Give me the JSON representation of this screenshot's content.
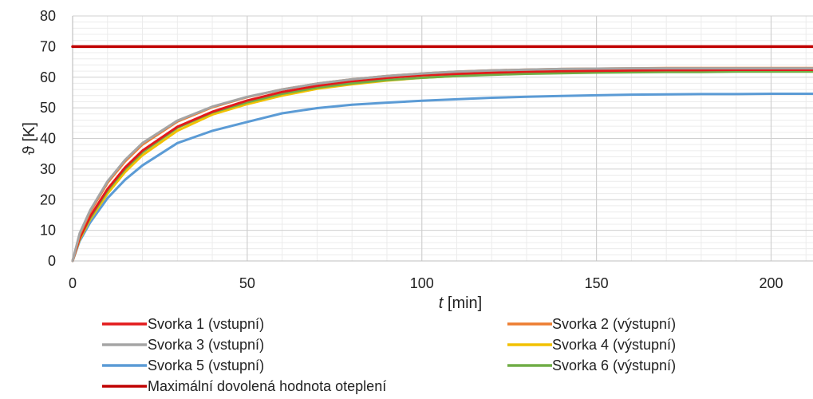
{
  "chart_data": {
    "type": "line",
    "title": "",
    "xlabel_var": "t",
    "xlabel_unit": " [min]",
    "ylabel": "ϑ [K]",
    "xlim": [
      0,
      212
    ],
    "ylim": [
      0,
      80
    ],
    "xticks": [
      0,
      50,
      100,
      150,
      200
    ],
    "yticks": [
      0,
      10,
      20,
      30,
      40,
      50,
      60,
      70,
      80
    ],
    "grid": true,
    "legend_position": "bottom",
    "x": [
      0,
      2,
      5,
      10,
      15,
      20,
      30,
      40,
      50,
      60,
      70,
      80,
      90,
      100,
      110,
      120,
      130,
      140,
      150,
      160,
      170,
      180,
      190,
      200,
      212
    ],
    "series": [
      {
        "name": "Svorka 1 (vstupní)",
        "color": "#e31a1c",
        "values": [
          0,
          7.5,
          14.5,
          23.5,
          30.5,
          36,
          43.8,
          48.7,
          52.4,
          55.2,
          57.2,
          58.7,
          59.8,
          60.6,
          61.1,
          61.5,
          61.8,
          62.0,
          62.1,
          62.2,
          62.3,
          62.3,
          62.4,
          62.4,
          62.4
        ]
      },
      {
        "name": "Svorka 2 (výstupní)",
        "color": "#ed7d31",
        "values": [
          0,
          8.5,
          16,
          25.5,
          32.5,
          38,
          45.5,
          50.2,
          53.5,
          56,
          57.9,
          59.3,
          60.4,
          61.2,
          61.8,
          62.2,
          62.5,
          62.7,
          62.8,
          62.9,
          63.0,
          63.0,
          63.0,
          63.0,
          63.0
        ]
      },
      {
        "name": "Svorka 3 (vstupní)",
        "color": "#a5a5a5",
        "values": [
          0,
          9,
          16.5,
          26,
          33,
          38.5,
          45.8,
          50.4,
          53.6,
          56,
          57.9,
          59.3,
          60.4,
          61.2,
          61.8,
          62.2,
          62.5,
          62.7,
          62.8,
          62.9,
          62.9,
          62.9,
          62.9,
          62.9,
          62.9
        ]
      },
      {
        "name": "Svorka 4 (výstupní)",
        "color": "#f2c100",
        "values": [
          0,
          7,
          13.5,
          22,
          29,
          34.5,
          42.5,
          47.8,
          51.2,
          54,
          56.2,
          57.7,
          58.9,
          59.8,
          60.4,
          60.9,
          61.3,
          61.6,
          61.8,
          61.9,
          62.0,
          62.0,
          62.0,
          62.0,
          62.0
        ]
      },
      {
        "name": "Svorka 5 (vstupní)",
        "color": "#5b9bd5",
        "values": [
          0,
          6.5,
          12.5,
          20.5,
          26.5,
          31.2,
          38.5,
          42.5,
          45.4,
          48.2,
          49.9,
          51.0,
          51.7,
          52.3,
          52.8,
          53.3,
          53.6,
          53.9,
          54.1,
          54.3,
          54.4,
          54.5,
          54.5,
          54.6,
          54.6
        ]
      },
      {
        "name": "Svorka 6 (výstupní)",
        "color": "#70ad47",
        "values": [
          0,
          7.5,
          14,
          23,
          30,
          35.5,
          43.5,
          48.5,
          51.8,
          54.6,
          56.6,
          58.0,
          59.1,
          59.8,
          60.4,
          60.8,
          61.1,
          61.3,
          61.5,
          61.6,
          61.7,
          61.7,
          61.8,
          61.8,
          61.8
        ]
      },
      {
        "name": "Maximální dovolená hodnota oteplení",
        "color": "#c00000",
        "values": [
          70,
          70,
          70,
          70,
          70,
          70,
          70,
          70,
          70,
          70,
          70,
          70,
          70,
          70,
          70,
          70,
          70,
          70,
          70,
          70,
          70,
          70,
          70,
          70,
          70
        ]
      }
    ]
  }
}
